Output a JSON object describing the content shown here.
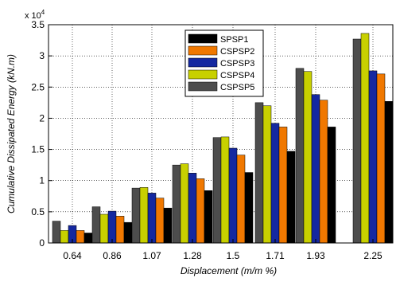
{
  "chart_data": {
    "type": "bar",
    "xlabel": "Displacement (m/m %)",
    "ylabel": "Cumulative Dissipated Energy (kN.m)",
    "y_exponent_label": "x 10",
    "y_exponent_power": "4",
    "ylim": [
      0,
      3.5
    ],
    "yticks": [
      "0",
      "0.5",
      "1",
      "1.5",
      "2",
      "2.5",
      "3",
      "3.5"
    ],
    "grid": true,
    "legend_position": "top-center",
    "categories": [
      "0.64",
      "0.86",
      "1.07",
      "1.28",
      "1.5",
      "1.71",
      "1.93",
      "2.25"
    ],
    "series": [
      {
        "name": "CSPSP5",
        "color": "#4d4d4d",
        "values": [
          0.35,
          0.58,
          0.88,
          1.25,
          1.69,
          2.25,
          2.8,
          3.27
        ]
      },
      {
        "name": "CSPSP4",
        "color": "#c8d000",
        "values": [
          0.2,
          0.46,
          0.89,
          1.27,
          1.7,
          2.2,
          2.75,
          3.36
        ]
      },
      {
        "name": "CSPSP3",
        "color": "#1428a0",
        "values": [
          0.28,
          0.51,
          0.8,
          1.12,
          1.52,
          1.92,
          2.38,
          2.76
        ]
      },
      {
        "name": "CSPSP2",
        "color": "#f07800",
        "values": [
          0.2,
          0.43,
          0.72,
          1.03,
          1.41,
          1.86,
          2.29,
          2.71
        ]
      },
      {
        "name": "SPSP1",
        "color": "#000000",
        "values": [
          0.16,
          0.33,
          0.56,
          0.84,
          1.13,
          1.47,
          1.86,
          2.27
        ]
      }
    ],
    "legend_order": [
      "SPSP1",
      "CSPSP2",
      "CSPSP3",
      "CSPSP4",
      "CSPSP5"
    ]
  }
}
